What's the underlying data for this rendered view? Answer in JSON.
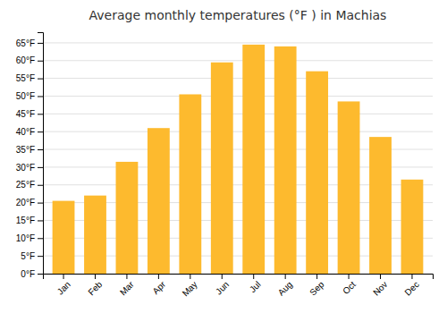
{
  "chart_data": {
    "type": "bar",
    "title": "Average monthly temperatures (°F ) in Machias",
    "categories": [
      "Jan",
      "Feb",
      "Mar",
      "Apr",
      "May",
      "Jun",
      "Jul",
      "Aug",
      "Sep",
      "Oct",
      "Nov",
      "Dec"
    ],
    "values": [
      20.5,
      22.0,
      31.5,
      41.0,
      50.5,
      59.5,
      64.5,
      64.0,
      57.0,
      48.5,
      38.5,
      26.5
    ],
    "color": "#FDBA2E",
    "ylim": [
      0,
      68
    ],
    "yticks": [
      {
        "value": 0,
        "label": "0°F"
      },
      {
        "value": 5,
        "label": "5°F"
      },
      {
        "value": 10,
        "label": "10°F"
      },
      {
        "value": 15,
        "label": "15°F"
      },
      {
        "value": 20,
        "label": "20°F"
      },
      {
        "value": 25,
        "label": "25°F"
      },
      {
        "value": 30,
        "label": "30°F"
      },
      {
        "value": 35,
        "label": "35°F"
      },
      {
        "value": 40,
        "label": "40°F"
      },
      {
        "value": 45,
        "label": "45°F"
      },
      {
        "value": 50,
        "label": "50°F"
      },
      {
        "value": 55,
        "label": "55°F"
      },
      {
        "value": 60,
        "label": "60°F"
      },
      {
        "value": 65,
        "label": "65°F"
      }
    ],
    "grid": true
  }
}
